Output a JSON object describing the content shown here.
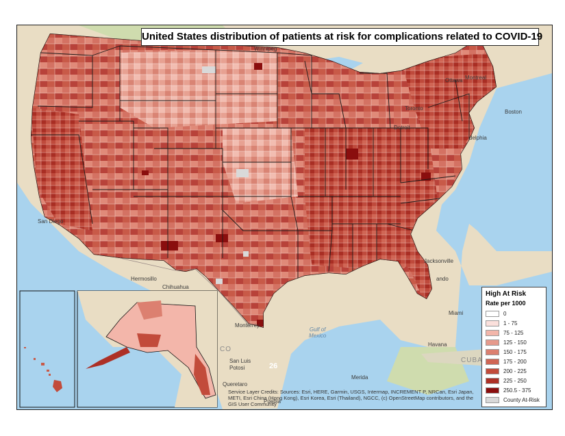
{
  "map": {
    "title": "United States distribution of patients at risk for complications related to COVID-19",
    "legend": {
      "title": "High At Risk",
      "subtitle": "Rate per 1000",
      "classes": [
        {
          "label": "0",
          "color": "#ffffff"
        },
        {
          "label": "1 - 75",
          "color": "#fbe0dc"
        },
        {
          "label": "75 - 125",
          "color": "#f3b6aa"
        },
        {
          "label": "125 - 150",
          "color": "#e69a8c"
        },
        {
          "label": "150 - 175",
          "color": "#dc8070"
        },
        {
          "label": "175 - 200",
          "color": "#d06655"
        },
        {
          "label": "200 - 225",
          "color": "#c24b3b"
        },
        {
          "label": "225 - 250",
          "color": "#ad3026"
        },
        {
          "label": "250.5 - 375",
          "color": "#8a0e0e"
        },
        {
          "label": "County At-Risk",
          "color": "#d9d9d9"
        }
      ]
    },
    "places": {
      "toronto": "Toronto",
      "ottawa": "Ottawa",
      "montreal": "Montreal",
      "detroit": "Detroit",
      "philadelphia": "delphia",
      "boston": "Boston",
      "san_diego": "San Diego",
      "hermosillo": "Hermosillo",
      "chihuahua": "Chihuahua",
      "monterrey": "Monterrey",
      "san_luis": "San Luis",
      "potosi": "Potosi",
      "queretaro": "Queretaro",
      "puebla": "Puebla",
      "merida": "Merida",
      "havana": "Havana",
      "cuba": "CUBA",
      "jacksonville": "Jacksonville",
      "orlando": "ando",
      "miami": "Miami",
      "mexico_short": "CO",
      "gulf": "Gulf of\nMexico",
      "winnipeg": "Winnipeg"
    },
    "sheet_number": "26",
    "credits": "Service Layer Credits: Sources: Esri, HERE, Garmin, USGS, Intermap, INCREMENT P, NRCan, Esri Japan, METI, Esri China (Hong Kong), Esri Korea, Esri (Thailand), NGCC, (c) OpenStreetMap contributors, and the GIS User Community"
  },
  "colors": {
    "water": "#a9d3ee",
    "land": "#e9ddc4",
    "land_green": "#cfdcae",
    "borders": "#1a1a1a"
  }
}
